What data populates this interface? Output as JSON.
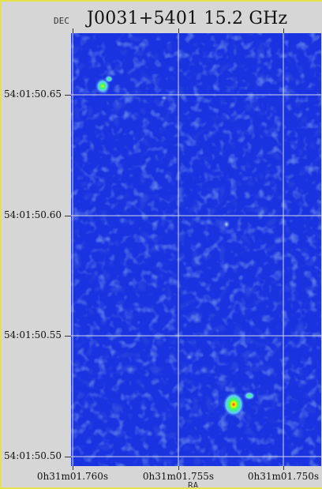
{
  "header": {
    "title": "J0031+5401  15.2 GHz",
    "dec_axis_label": "DEC",
    "ra_axis_label": "RA"
  },
  "axes": {
    "y_ticks": [
      "54:01:50.65",
      "54:01:50.60",
      "54:01:50.55",
      "54:01:50.50"
    ],
    "x_ticks": [
      "0h31m01.760s",
      "0h31m01.755s",
      "0h31m01.750s"
    ]
  },
  "image": {
    "colormap": [
      "#1a33e0",
      "#2a5cf0",
      "#66a8ff",
      "#a8e6ff",
      "#33ff66",
      "#ffee00",
      "#ff2a00"
    ],
    "background_color": "#1a33e0",
    "grid_color": "#e8e8e8"
  }
}
